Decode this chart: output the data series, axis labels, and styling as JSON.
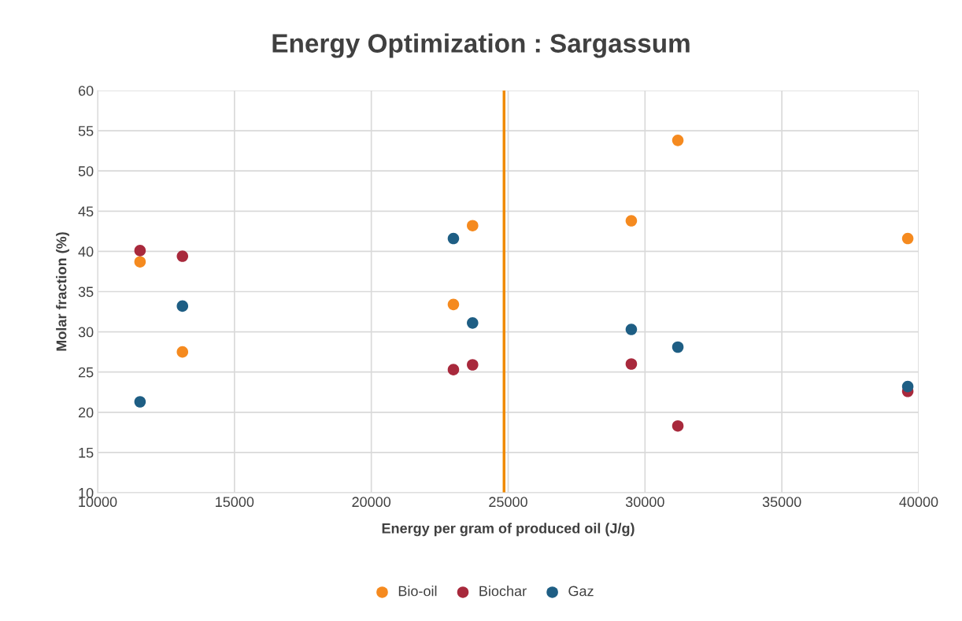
{
  "chart_data": {
    "type": "scatter",
    "title": "Energy Optimization : Sargassum",
    "xlabel": "Energy per gram of produced oil (J/g)",
    "ylabel": "Molar fraction (%)",
    "x": [
      11550,
      13100,
      23000,
      23700,
      29500,
      31200,
      39600
    ],
    "series": [
      {
        "name": "Bio-oil",
        "color": "#f58a1f",
        "values": [
          38.7,
          27.5,
          33.4,
          43.2,
          43.8,
          53.8,
          41.6
        ]
      },
      {
        "name": "Biochar",
        "color": "#a8293c",
        "values": [
          40.1,
          39.4,
          25.3,
          25.9,
          26.0,
          18.3,
          22.6
        ]
      },
      {
        "name": "Gaz",
        "color": "#1e5e84",
        "values": [
          21.3,
          33.2,
          41.6,
          31.1,
          30.3,
          28.1,
          23.2
        ]
      }
    ],
    "ref_lines": [
      {
        "axis": "x",
        "value": 24850,
        "color": "#f08a00",
        "line_style": "solid"
      }
    ],
    "xlim": [
      10000,
      40000
    ],
    "xticks": [
      10000,
      15000,
      20000,
      25000,
      30000,
      35000,
      40000
    ],
    "ylim": [
      10,
      60
    ],
    "yticks": [
      10,
      15,
      20,
      25,
      30,
      35,
      40,
      45,
      50,
      55,
      60
    ],
    "grid": true,
    "legend": "bottom",
    "marker": "circle"
  }
}
